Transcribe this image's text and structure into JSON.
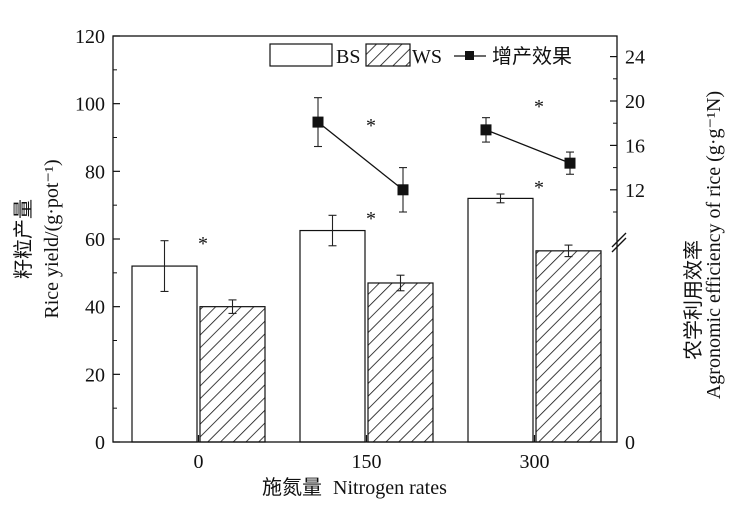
{
  "chart_data": {
    "type": "bar",
    "categories": [
      "0",
      "150",
      "300"
    ],
    "xlabel_cn": "施氮量",
    "xlabel": "Nitrogen rates",
    "ylabel_cn": "籽粒产量",
    "ylabel": "Rice yield/(g·pot⁻¹)",
    "ylim": [
      0,
      120
    ],
    "yticks": [
      "0",
      "20",
      "40",
      "60",
      "80",
      "100",
      "120"
    ],
    "y2label_cn": "农学利用效率",
    "y2label": "Agronomic efficiency of rice (g·g⁻¹N)",
    "y2ticks": [
      "0",
      "12",
      "16",
      "20",
      "24"
    ],
    "y2_axis_break": true,
    "series": [
      {
        "name": "BS",
        "style": "open",
        "values": [
          52,
          62.5,
          72
        ],
        "errors": [
          7.5,
          4.5,
          1.3
        ]
      },
      {
        "name": "WS",
        "style": "hatched",
        "values": [
          40,
          47,
          56.5
        ],
        "errors": [
          2,
          2.3,
          1.7
        ]
      }
    ],
    "line_series": {
      "name": "增产效果",
      "axis": "right",
      "groups": [
        {
          "category": "150",
          "values": [
            18.1,
            12.0
          ],
          "errors": [
            2.2,
            2.0
          ]
        },
        {
          "category": "300",
          "values": [
            17.4,
            14.4
          ],
          "errors": [
            1.1,
            1.0
          ]
        }
      ]
    },
    "annotations": [
      "*",
      "*",
      "*",
      "*",
      "*"
    ],
    "legend_position": "top-right",
    "grid": false
  }
}
